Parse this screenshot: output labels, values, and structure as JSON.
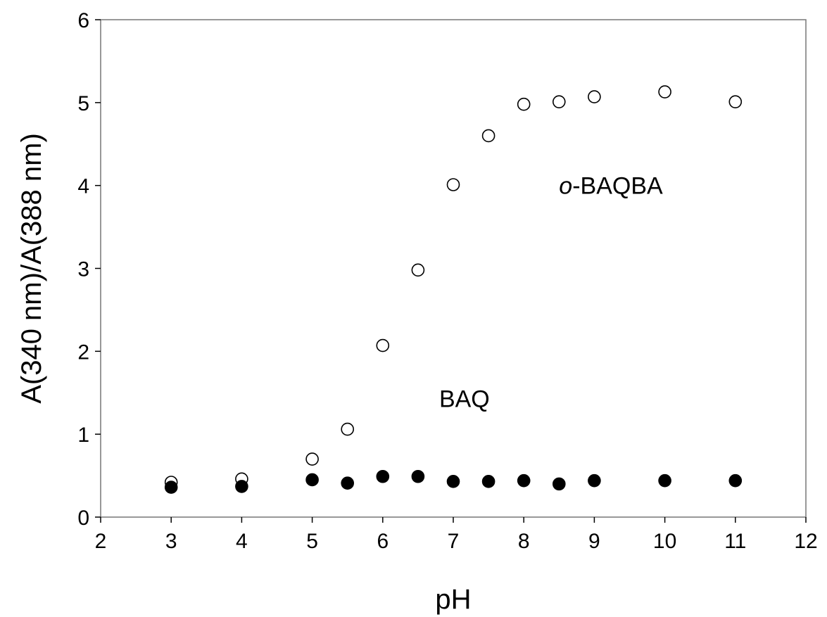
{
  "chart_data": {
    "type": "scatter",
    "title": "",
    "xlabel": "pH",
    "ylabel": "A(340 nm)/A(388 nm)",
    "xlim": [
      2,
      12
    ],
    "ylim": [
      0,
      6
    ],
    "x_ticks": [
      2,
      3,
      4,
      5,
      6,
      7,
      8,
      9,
      10,
      11,
      12
    ],
    "y_ticks": [
      0,
      1,
      2,
      3,
      4,
      5,
      6
    ],
    "grid": false,
    "legend": "none",
    "series": [
      {
        "label": "o-BAQBA",
        "label_prefix": "o",
        "label_suffix": "-BAQBA",
        "marker": "open-circle",
        "color": "#000000",
        "x": [
          3,
          4,
          5,
          5.5,
          6,
          6.5,
          7,
          7.5,
          8,
          8.5,
          9,
          10,
          11
        ],
        "y": [
          0.42,
          0.46,
          0.7,
          1.06,
          2.07,
          2.98,
          4.01,
          4.6,
          4.98,
          5.01,
          5.07,
          5.13,
          5.01
        ]
      },
      {
        "label": "BAQ",
        "marker": "filled-circle",
        "color": "#000000",
        "x": [
          3,
          4,
          5,
          5.5,
          6,
          6.5,
          7,
          7.5,
          8,
          8.5,
          9,
          10,
          11
        ],
        "y": [
          0.36,
          0.37,
          0.45,
          0.41,
          0.49,
          0.49,
          0.43,
          0.43,
          0.44,
          0.4,
          0.44,
          0.44,
          0.44
        ]
      }
    ]
  }
}
